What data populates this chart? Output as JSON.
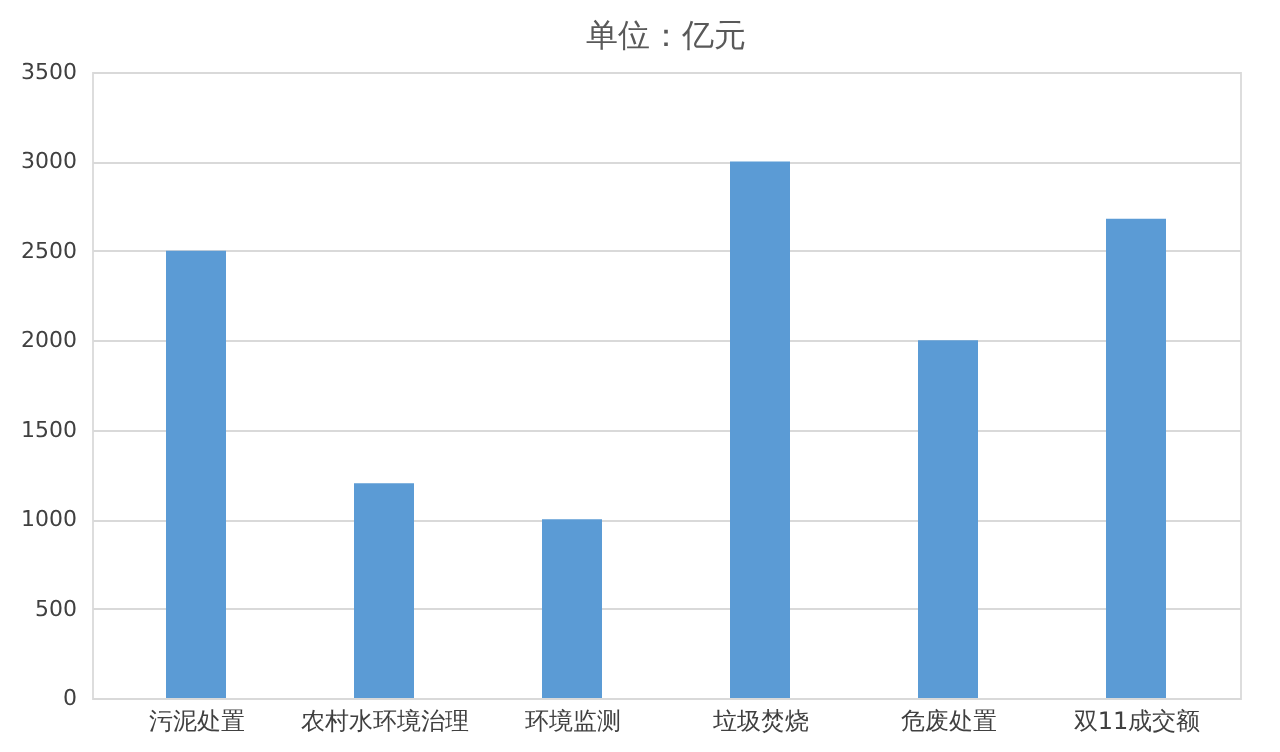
{
  "chart_data": {
    "type": "bar",
    "title": "单位：亿元",
    "categories": [
      "污泥处置",
      "农村水环境治理",
      "环境监测",
      "垃圾焚烧",
      "危废处置",
      "双11成交额"
    ],
    "values": [
      2500,
      1200,
      1000,
      3000,
      2000,
      2680
    ],
    "color": "#5b9bd5",
    "ylim": [
      0,
      3500
    ],
    "yticks": [
      0,
      500,
      1000,
      1500,
      2000,
      2500,
      3000,
      3500
    ],
    "grid": "y"
  }
}
